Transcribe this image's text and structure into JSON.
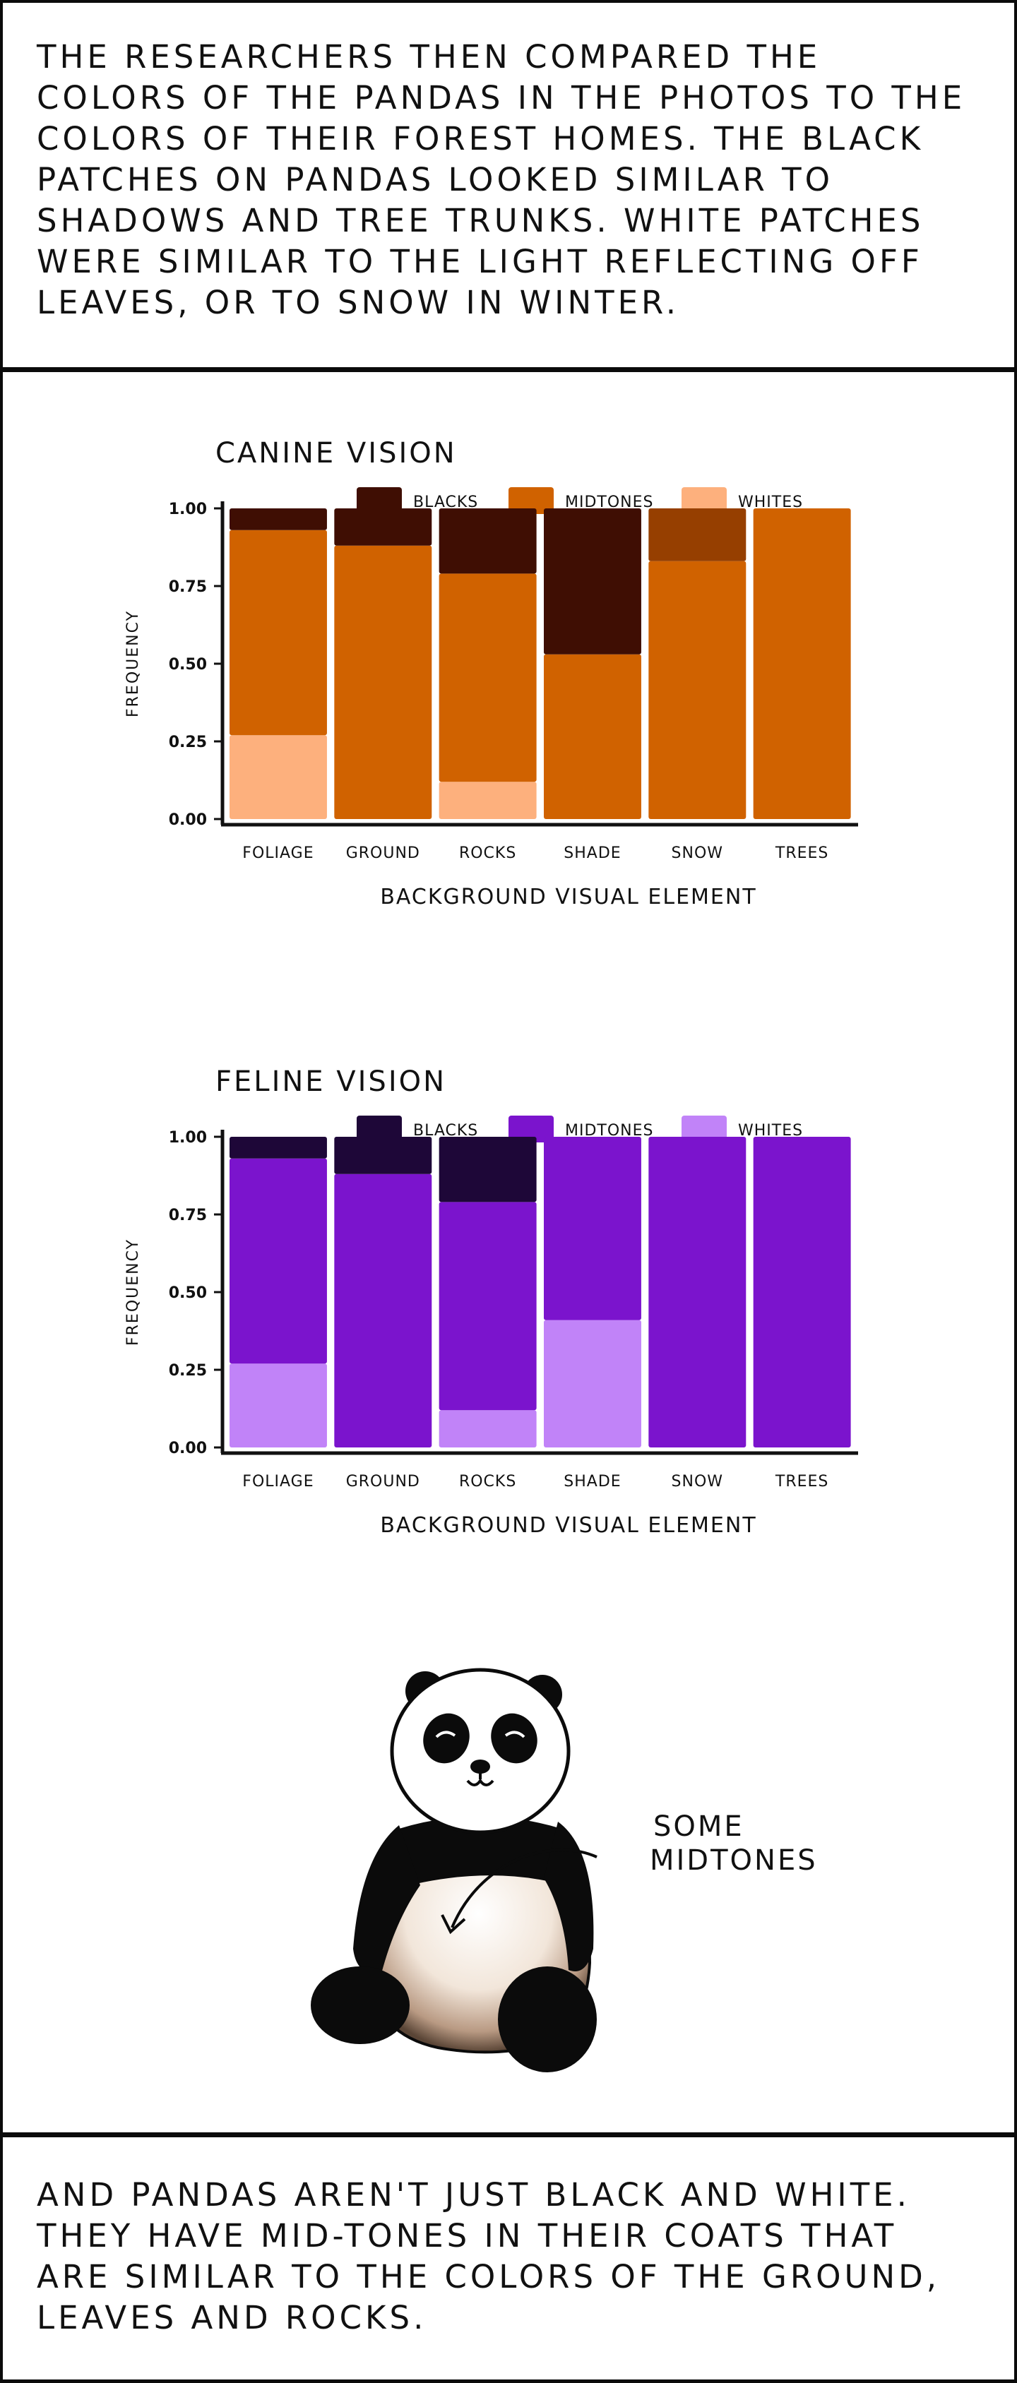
{
  "top_caption": "The researchers then compared the colors of the pandas in the photos to the colors of their forest homes. The black patches on pandas looked similar to shadows and tree trunks. White patches were similar to the light reflecting off leaves, or to snow in winter.",
  "bottom_caption": "And pandas aren't just black and white. They have mid-tones in their coats that are similar to the colors of the ground, leaves and rocks.",
  "panda_annotation": [
    "Some",
    "midtones"
  ],
  "chart_data": [
    {
      "type": "bar",
      "stacked": true,
      "title": "Canine Vision",
      "xlabel": "Background visual element",
      "ylabel": "Frequency",
      "ylim": [
        0,
        1
      ],
      "yticks": [
        "1.00",
        "0.75",
        "0.50",
        "0.25",
        "0.00"
      ],
      "categories": [
        "Foliage",
        "Ground",
        "Rocks",
        "Shade",
        "Snow",
        "Trees"
      ],
      "series": [
        {
          "name": "Whites",
          "color": "#fdb07d",
          "values": [
            0.27,
            0.0,
            0.12,
            0.0,
            0.0,
            0.0
          ]
        },
        {
          "name": "Midtones",
          "color": "#d06200",
          "values": [
            0.66,
            0.88,
            0.67,
            0.53,
            0.83,
            1.0
          ]
        },
        {
          "name": "Blacks",
          "color": "#3f0e03",
          "values": [
            0.07,
            0.12,
            0.21,
            0.47,
            0.17,
            0.0
          ]
        }
      ],
      "legend_order": [
        "Blacks",
        "Midtones",
        "Whites"
      ],
      "highlight": {
        "category": "Snow",
        "series": "Blacks",
        "color": "#963f00"
      }
    },
    {
      "type": "bar",
      "stacked": true,
      "title": "Feline Vision",
      "xlabel": "Background visual element",
      "ylabel": "Frequency",
      "ylim": [
        0,
        1
      ],
      "yticks": [
        "1.00",
        "0.75",
        "0.50",
        "0.25",
        "0.00"
      ],
      "categories": [
        "Foliage",
        "Ground",
        "Rocks",
        "Shade",
        "Snow",
        "Trees"
      ],
      "series": [
        {
          "name": "Whites",
          "color": "#c183f8",
          "values": [
            0.27,
            0.0,
            0.12,
            0.41,
            0.0,
            0.0
          ]
        },
        {
          "name": "Midtones",
          "color": "#7b14cd",
          "values": [
            0.66,
            0.88,
            0.67,
            0.59,
            1.0,
            1.0
          ]
        },
        {
          "name": "Blacks",
          "color": "#1e0738",
          "values": [
            0.07,
            0.12,
            0.21,
            0.0,
            0.0,
            0.0
          ]
        }
      ],
      "legend_order": [
        "Blacks",
        "Midtones",
        "Whites"
      ]
    }
  ]
}
